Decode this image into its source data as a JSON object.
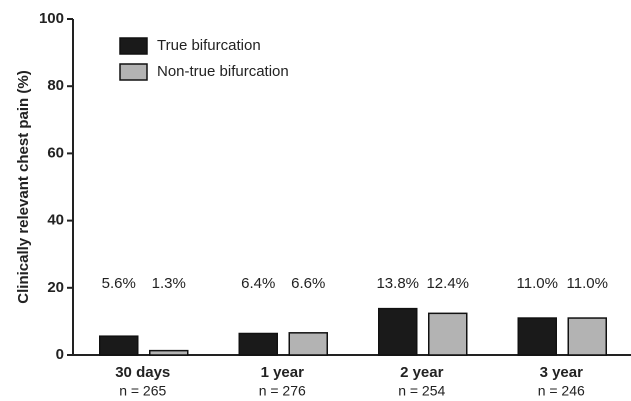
{
  "chart_data": {
    "type": "bar",
    "y_label": "Clinically relevant chest pain (%)",
    "categories": [
      "30 days",
      "1 year",
      "2 year",
      "3 year"
    ],
    "sample_sizes": [
      "n = 265",
      "n = 276",
      "n = 254",
      "n = 246"
    ],
    "series": [
      {
        "name": "True bifurcation",
        "color": "#1a1a1a",
        "values": [
          5.6,
          6.4,
          13.8,
          11.0
        ],
        "value_labels": [
          "5.6%",
          "6.4%",
          "13.8%",
          "11.0%"
        ]
      },
      {
        "name": "Non-true bifurcation",
        "color": "#b3b3b3",
        "values": [
          1.3,
          6.6,
          12.4,
          11.0
        ],
        "value_labels": [
          "1.3%",
          "6.6%",
          "12.4%",
          "11.0%"
        ]
      }
    ],
    "ylim": [
      0,
      100
    ],
    "yticks": [
      0,
      20,
      40,
      60,
      80,
      100
    ],
    "legend": "upper left"
  }
}
